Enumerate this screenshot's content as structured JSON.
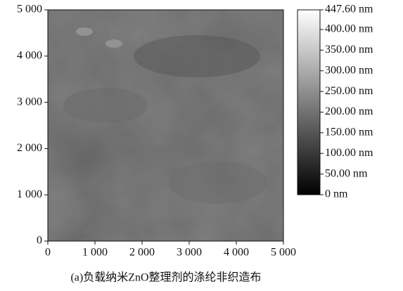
{
  "chart_data": {
    "type": "heatmap",
    "caption": "(a)负载纳米ZnO整理剂的涤纶非织造布",
    "xlim": [
      0,
      5000
    ],
    "xticks": [
      0,
      {
        "value": 1000,
        "label": "1 000"
      },
      {
        "value": 2000,
        "label": "2 000"
      },
      {
        "value": 3000,
        "label": "3 000"
      },
      {
        "value": 4000,
        "label": "4 000"
      },
      {
        "value": 5000,
        "label": "5 000"
      }
    ],
    "ylim": [
      0,
      5000
    ],
    "yticks": [
      0,
      {
        "value": 1000,
        "label": "1 000"
      },
      {
        "value": 2000,
        "label": "2 000"
      },
      {
        "value": 3000,
        "label": "3 000"
      },
      {
        "value": 4000,
        "label": "4 000"
      },
      {
        "value": 5000,
        "label": "5 000"
      }
    ],
    "zlim": [
      0,
      447.6
    ],
    "zticks": [
      {
        "value": 0,
        "label": "0 nm"
      },
      {
        "value": 50,
        "label": "50.00 nm"
      },
      {
        "value": 100,
        "label": "100.00 nm"
      },
      {
        "value": 150,
        "label": "150.00 nm"
      },
      {
        "value": 200,
        "label": "200.00 nm"
      },
      {
        "value": 250,
        "label": "250.00 nm"
      },
      {
        "value": 300,
        "label": "300.00 nm"
      },
      {
        "value": 350,
        "label": "350.00 nm"
      },
      {
        "value": 400,
        "label": "400.00 nm"
      },
      {
        "value": 447.6,
        "label": "447.60 nm"
      }
    ]
  }
}
